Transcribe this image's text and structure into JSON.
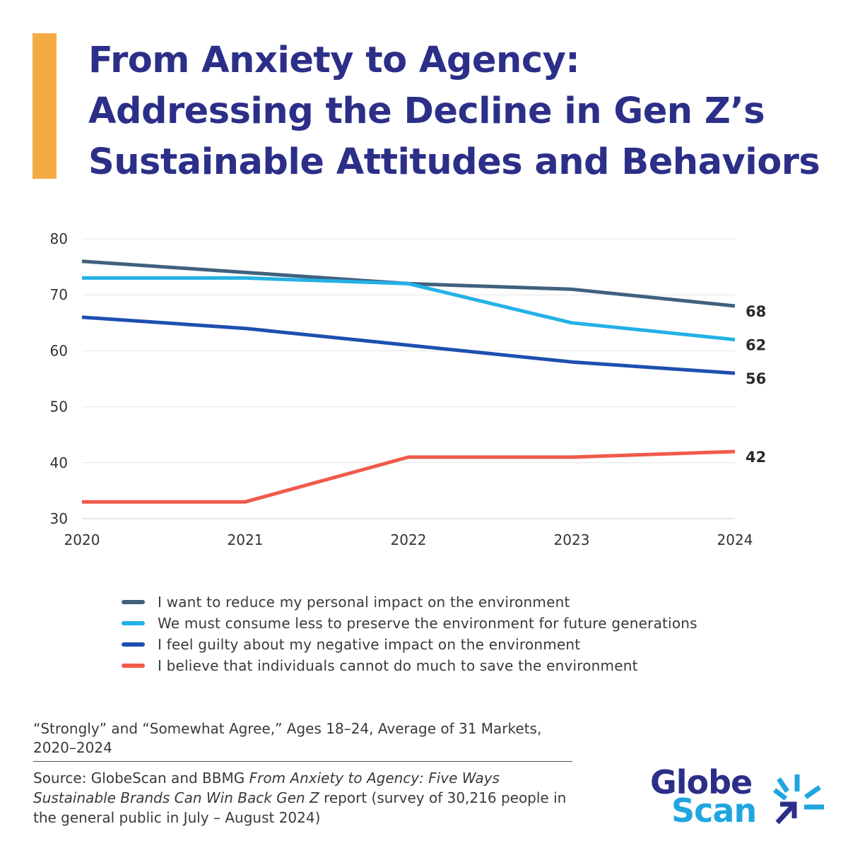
{
  "title_lines": [
    "From Anxiety to Agency:",
    "Addressing the Decline in Gen Z’s",
    "Sustainable Attitudes and Behaviors"
  ],
  "chart_data": {
    "type": "line",
    "x": [
      "2020",
      "2021",
      "2022",
      "2023",
      "2024"
    ],
    "ylim": [
      30,
      80
    ],
    "yticks": [
      30,
      40,
      50,
      60,
      70,
      80
    ],
    "grid": true,
    "series": [
      {
        "name": "I want to reduce my personal impact on the environment",
        "color": "#40617e",
        "values": [
          76,
          74,
          72,
          71,
          68
        ]
      },
      {
        "name": "We must consume less to preserve the environment for future generations",
        "color": "#23b1e6",
        "values": [
          73,
          73,
          72,
          65,
          62
        ]
      },
      {
        "name": "I feel guilty about my negative impact on the environment",
        "color": "#1d4fb0",
        "values": [
          66,
          64,
          61,
          58,
          56
        ]
      },
      {
        "name": "I believe that individuals cannot do much to save the environment",
        "color": "#f05a49",
        "values": [
          33,
          33,
          41,
          41,
          42
        ]
      }
    ],
    "end_labels": [
      "68",
      "62",
      "56",
      "42"
    ],
    "legend_position": "bottom"
  },
  "footnote": "“Strongly” and “Somewhat Agree,” Ages 18–24, Average of 31 Markets, 2020–2024",
  "source": {
    "prefix": "Source: GlobeScan and BBMG ",
    "report_title": "From Anxiety to Agency: Five Ways Sustainable Brands Can Win Back Gen Z",
    "suffix": " report (survey of 30,216 people in the general public in July – August 2024)"
  },
  "logo": {
    "line1": "Globe",
    "line2": "Scan",
    "colors": {
      "globe": "#2c2f88",
      "scan": "#1fa6e0"
    }
  },
  "colors": {
    "accent": "#f5ab45",
    "title": "#2c2f88"
  }
}
